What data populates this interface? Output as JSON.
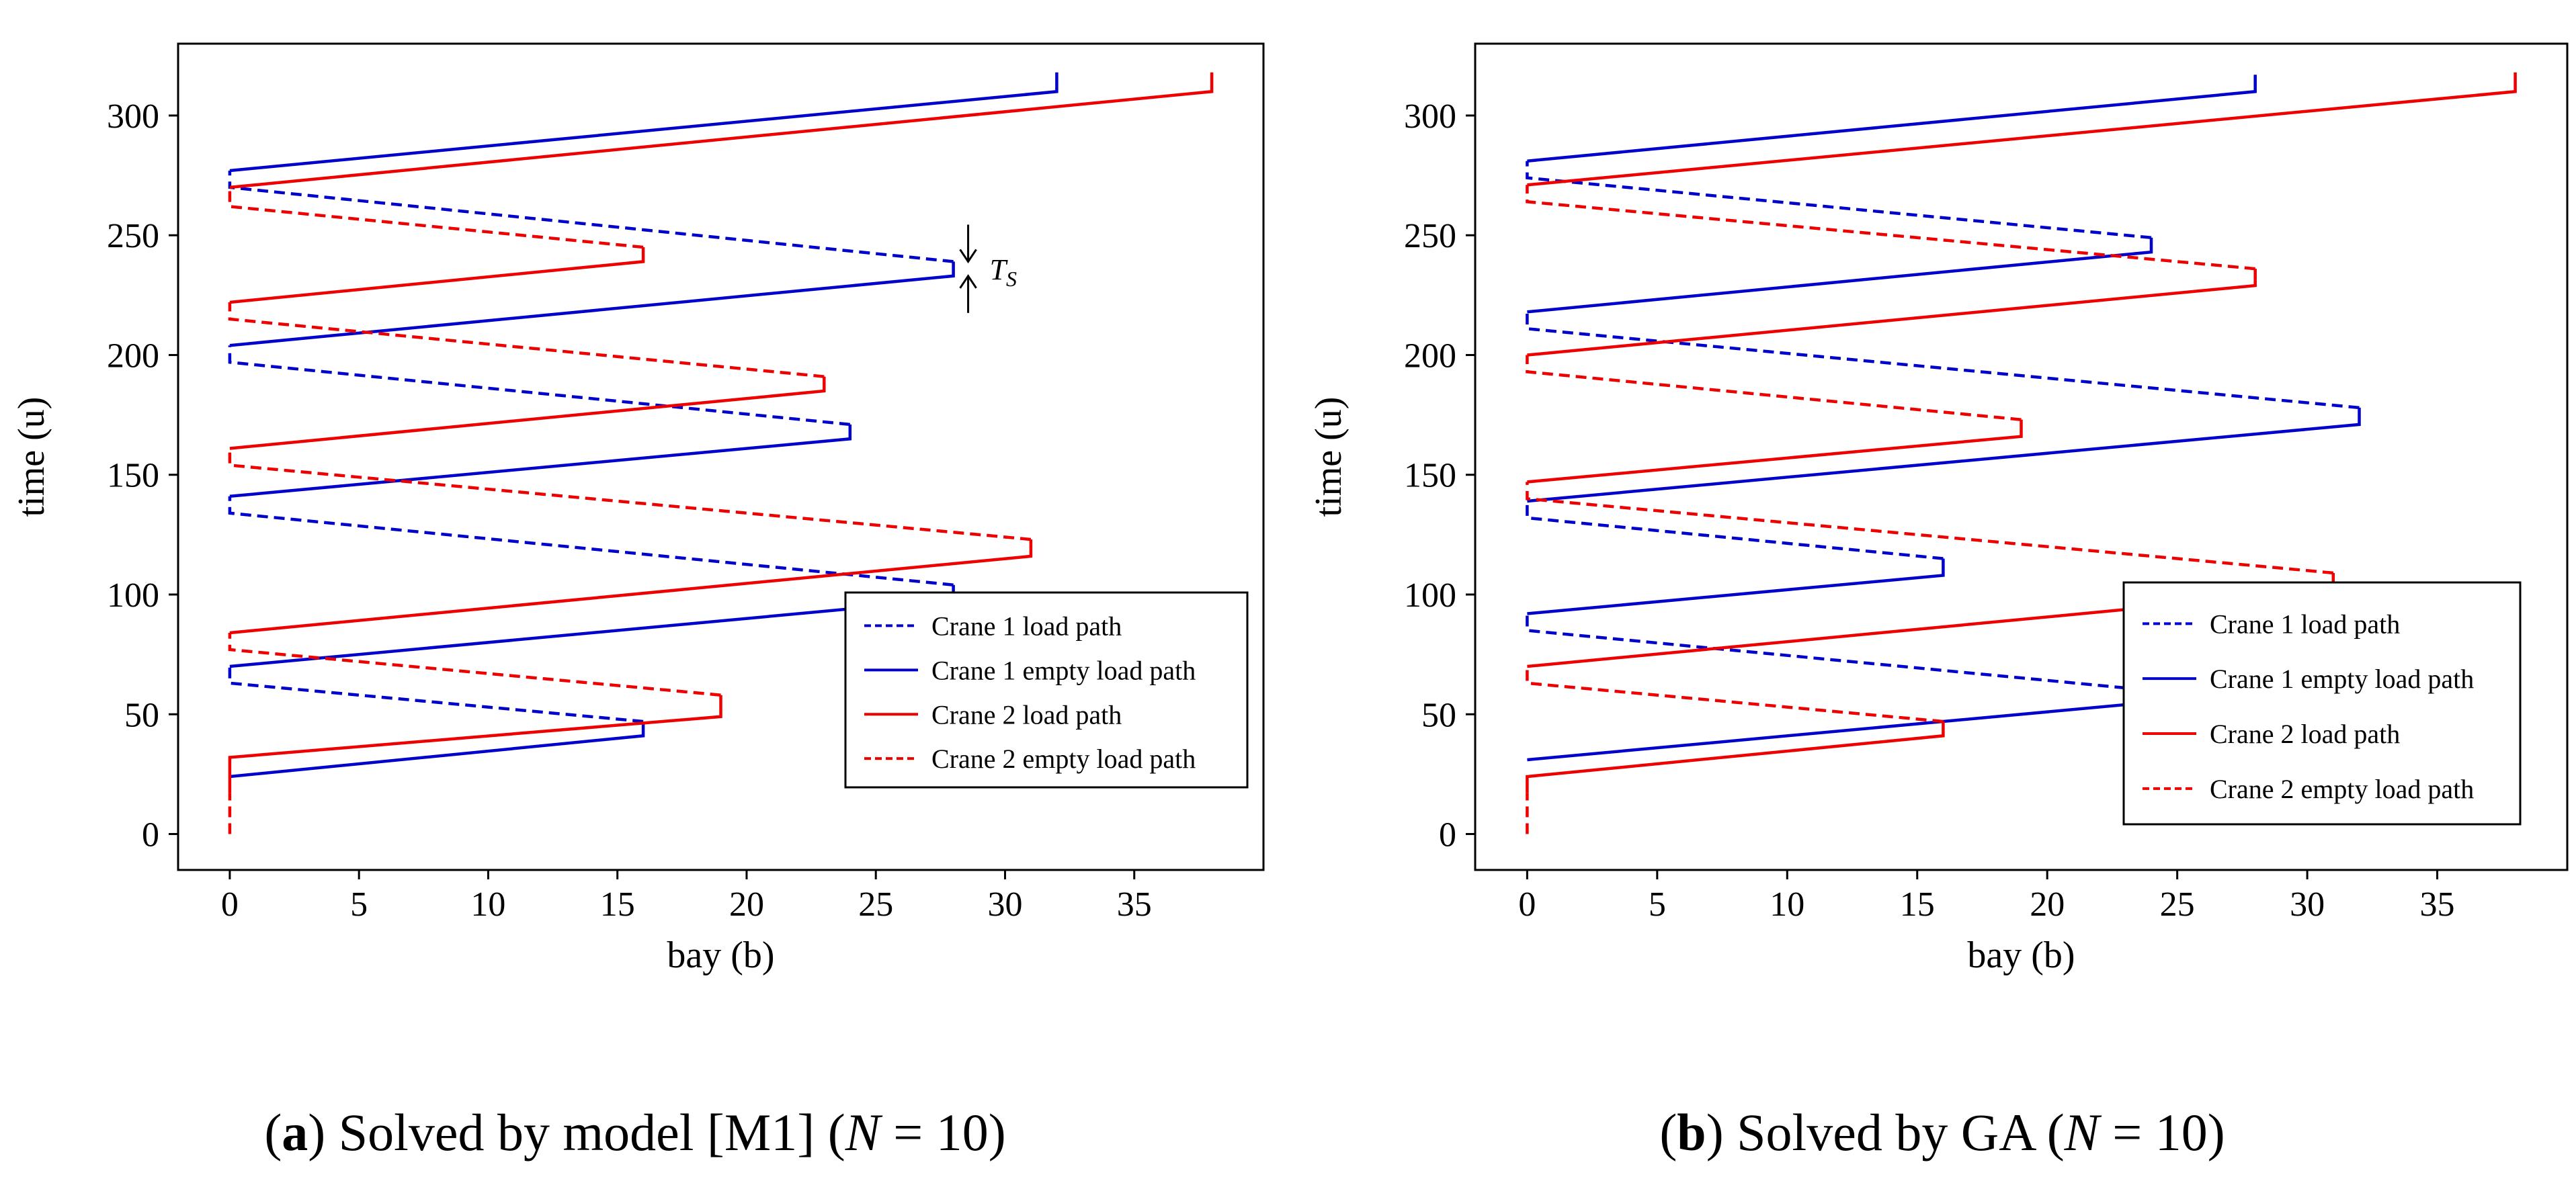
{
  "colors": {
    "crane1": "#0000cc",
    "crane2": "#ee0000",
    "axis": "#000000"
  },
  "captions": [
    {
      "prefix": "(",
      "letter": "a",
      "middle": ") Solved by model [M1] (",
      "variable": "N",
      "suffix": " = 10)"
    },
    {
      "prefix": "(",
      "letter": "b",
      "middle": ") Solved by GA (",
      "variable": "N",
      "suffix": " = 10)"
    }
  ],
  "chart_data": [
    {
      "type": "line",
      "title": "",
      "xlabel": "bay (b)",
      "ylabel": "time (u)",
      "xlim": [
        -2,
        40
      ],
      "ylim": [
        -15,
        330
      ],
      "xticks": [
        0,
        5,
        10,
        15,
        20,
        25,
        30,
        35
      ],
      "yticks": [
        0,
        50,
        100,
        150,
        200,
        250,
        300
      ],
      "legend": [
        "Crane 1 load path",
        "Crane 1 empty load path",
        "Crane 2 load path",
        "Crane 2 empty load path"
      ],
      "legend_position": "lower-right",
      "annotation": {
        "text": "T",
        "subscript": "S",
        "bay": 28,
        "time_low": 233,
        "time_high": 239
      },
      "series": [
        {
          "name": "Crane 1",
          "crane": 1,
          "segments": [
            {
              "style": "solid",
              "points": [
                [
                  0,
                  24
                ],
                [
                  16,
                  41
                ],
                [
                  16,
                  47
                ]
              ]
            },
            {
              "style": "dashed",
              "points": [
                [
                  16,
                  47
                ],
                [
                  0,
                  63
                ],
                [
                  0,
                  70
                ]
              ]
            },
            {
              "style": "solid",
              "points": [
                [
                  0,
                  70
                ],
                [
                  28,
                  98
                ],
                [
                  28,
                  104
                ]
              ]
            },
            {
              "style": "dashed",
              "points": [
                [
                  28,
                  104
                ],
                [
                  0,
                  134
                ],
                [
                  0,
                  141
                ]
              ]
            },
            {
              "style": "solid",
              "points": [
                [
                  0,
                  141
                ],
                [
                  24,
                  165
                ],
                [
                  24,
                  171
                ]
              ]
            },
            {
              "style": "dashed",
              "points": [
                [
                  24,
                  171
                ],
                [
                  0,
                  197
                ],
                [
                  0,
                  204
                ]
              ]
            },
            {
              "style": "solid",
              "points": [
                [
                  0,
                  204
                ],
                [
                  28,
                  233
                ],
                [
                  28,
                  239
                ]
              ]
            },
            {
              "style": "dashed",
              "points": [
                [
                  28,
                  239
                ],
                [
                  0,
                  270
                ],
                [
                  0,
                  277
                ]
              ]
            },
            {
              "style": "solid",
              "points": [
                [
                  0,
                  277
                ],
                [
                  32,
                  310
                ],
                [
                  32,
                  318
                ]
              ]
            }
          ]
        },
        {
          "name": "Crane 2",
          "crane": 2,
          "segments": [
            {
              "style": "dashed",
              "points": [
                [
                  0,
                  0
                ],
                [
                  0,
                  17
                ]
              ]
            },
            {
              "style": "solid",
              "points": [
                [
                  0,
                  17
                ],
                [
                  0,
                  32
                ],
                [
                  19,
                  49
                ],
                [
                  19,
                  58
                ]
              ]
            },
            {
              "style": "dashed",
              "points": [
                [
                  19,
                  58
                ],
                [
                  0,
                  77
                ],
                [
                  0,
                  84
                ]
              ]
            },
            {
              "style": "solid",
              "points": [
                [
                  0,
                  84
                ],
                [
                  31,
                  116
                ],
                [
                  31,
                  123
                ]
              ]
            },
            {
              "style": "dashed",
              "points": [
                [
                  31,
                  123
                ],
                [
                  0,
                  154
                ],
                [
                  0,
                  161
                ]
              ]
            },
            {
              "style": "solid",
              "points": [
                [
                  0,
                  161
                ],
                [
                  23,
                  185
                ],
                [
                  23,
                  191
                ]
              ]
            },
            {
              "style": "dashed",
              "points": [
                [
                  23,
                  191
                ],
                [
                  0,
                  215
                ],
                [
                  0,
                  222
                ]
              ]
            },
            {
              "style": "solid",
              "points": [
                [
                  0,
                  222
                ],
                [
                  16,
                  239
                ],
                [
                  16,
                  245
                ]
              ]
            },
            {
              "style": "dashed",
              "points": [
                [
                  16,
                  245
                ],
                [
                  0,
                  262
                ],
                [
                  0,
                  270
                ]
              ]
            },
            {
              "style": "solid",
              "points": [
                [
                  0,
                  270
                ],
                [
                  38,
                  310
                ],
                [
                  38,
                  318
                ]
              ]
            }
          ]
        }
      ]
    },
    {
      "type": "line",
      "title": "",
      "xlabel": "bay (b)",
      "ylabel": "time (u)",
      "xlim": [
        -2,
        40
      ],
      "ylim": [
        -15,
        330
      ],
      "xticks": [
        0,
        5,
        10,
        15,
        20,
        25,
        30,
        35
      ],
      "yticks": [
        0,
        50,
        100,
        150,
        200,
        250,
        300
      ],
      "legend": [
        "Crane 1 load path",
        "Crane 1 empty load path",
        "Crane 2 load path",
        "Crane 2 empty load path"
      ],
      "legend_position": "lower-right",
      "series": [
        {
          "name": "Crane 1",
          "crane": 1,
          "segments": [
            {
              "style": "solid",
              "points": [
                [
                  0,
                  31
                ],
                [
                  23,
                  54
                ],
                [
                  23,
                  61
                ]
              ]
            },
            {
              "style": "dashed",
              "points": [
                [
                  23,
                  61
                ],
                [
                  0,
                  85
                ],
                [
                  0,
                  92
                ]
              ]
            },
            {
              "style": "solid",
              "points": [
                [
                  0,
                  92
                ],
                [
                  16,
                  108
                ],
                [
                  16,
                  115
                ]
              ]
            },
            {
              "style": "dashed",
              "points": [
                [
                  16,
                  115
                ],
                [
                  0,
                  132
                ],
                [
                  0,
                  139
                ]
              ]
            },
            {
              "style": "solid",
              "points": [
                [
                  0,
                  139
                ],
                [
                  32,
                  171
                ],
                [
                  32,
                  178
                ]
              ]
            },
            {
              "style": "dashed",
              "points": [
                [
                  32,
                  178
                ],
                [
                  0,
                  211
                ],
                [
                  0,
                  218
                ]
              ]
            },
            {
              "style": "solid",
              "points": [
                [
                  0,
                  218
                ],
                [
                  24,
                  243
                ],
                [
                  24,
                  249
                ]
              ]
            },
            {
              "style": "dashed",
              "points": [
                [
                  24,
                  249
                ],
                [
                  0,
                  274
                ],
                [
                  0,
                  281
                ]
              ]
            },
            {
              "style": "solid",
              "points": [
                [
                  0,
                  281
                ],
                [
                  28,
                  310
                ],
                [
                  28,
                  317
                ]
              ]
            }
          ]
        },
        {
          "name": "Crane 2",
          "crane": 2,
          "segments": [
            {
              "style": "dashed",
              "points": [
                [
                  0,
                  0
                ],
                [
                  0,
                  17
                ]
              ]
            },
            {
              "style": "solid",
              "points": [
                [
                  0,
                  17
                ],
                [
                  0,
                  24
                ],
                [
                  16,
                  41
                ],
                [
                  16,
                  47
                ]
              ]
            },
            {
              "style": "dashed",
              "points": [
                [
                  16,
                  47
                ],
                [
                  0,
                  63
                ],
                [
                  0,
                  70
                ]
              ]
            },
            {
              "style": "solid",
              "points": [
                [
                  0,
                  70
                ],
                [
                  31,
                  102
                ],
                [
                  31,
                  109
                ]
              ]
            },
            {
              "style": "dashed",
              "points": [
                [
                  31,
                  109
                ],
                [
                  0,
                  140
                ],
                [
                  0,
                  147
                ]
              ]
            },
            {
              "style": "solid",
              "points": [
                [
                  0,
                  147
                ],
                [
                  19,
                  166
                ],
                [
                  19,
                  173
                ]
              ]
            },
            {
              "style": "dashed",
              "points": [
                [
                  19,
                  173
                ],
                [
                  0,
                  193
                ],
                [
                  0,
                  200
                ]
              ]
            },
            {
              "style": "solid",
              "points": [
                [
                  0,
                  200
                ],
                [
                  28,
                  229
                ],
                [
                  28,
                  236
                ]
              ]
            },
            {
              "style": "dashed",
              "points": [
                [
                  28,
                  236
                ],
                [
                  0,
                  264
                ],
                [
                  0,
                  271
                ]
              ]
            },
            {
              "style": "solid",
              "points": [
                [
                  0,
                  271
                ],
                [
                  38,
                  310
                ],
                [
                  38,
                  318
                ]
              ]
            }
          ]
        }
      ]
    }
  ]
}
